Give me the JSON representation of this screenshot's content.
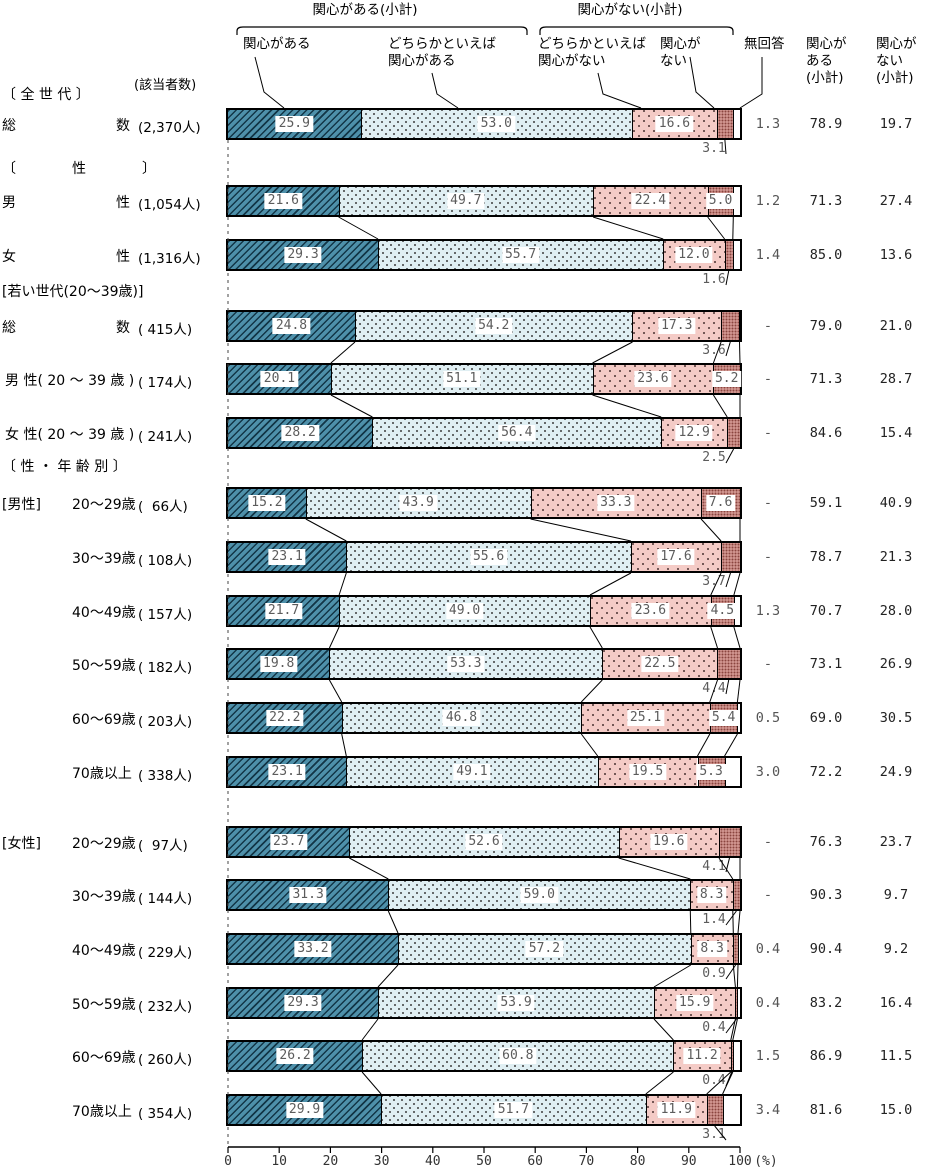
{
  "header": {
    "yes_subtotal": "関心がある(小計)",
    "no_subtotal": "関心がない(小計)",
    "yes": "関心がある",
    "rather_yes": "どちらかといえば\n関心がある",
    "rather_no": "どちらかといえば\n関心がない",
    "no": "関心が\nない",
    "no_answer": "無回答",
    "col_yes": "関心が\nある\n(小計)",
    "col_no": "関心が\nない\n(小計)",
    "respondents_note": "(該当者数)"
  },
  "axis": {
    "ticks": [
      "0",
      "10",
      "20",
      "30",
      "40",
      "50",
      "60",
      "70",
      "80",
      "90",
      "100"
    ],
    "unit": "(%)"
  },
  "colors": {
    "yes": "#4e90aa",
    "rather_yes": "#e0eff3",
    "rather_no": "#f4cbc6",
    "no": "#dda39d",
    "no_answer": "#ffffff"
  },
  "sections": [
    {
      "text": "〔 全 世 代 〕",
      "before": 0
    },
    {
      "text": "〔　　　　性　　　　〕",
      "before": 1
    },
    {
      "text": "[若い世代(20～39歳)]",
      "before": 3
    },
    {
      "text": "〔 性 ・ 年 齢 別 〕",
      "before": 6
    }
  ],
  "rows": [
    {
      "prefix": "",
      "name": "総数",
      "spread": true,
      "name_col": "outer",
      "count": "(2,370人)",
      "values": [
        25.9,
        53.0,
        16.6,
        3.1
      ],
      "no_pos": "below",
      "no_answer": "1.3",
      "yes_subtotal": "78.9",
      "no_subtotal": "19.7"
    },
    {
      "prefix": "",
      "name": "男性",
      "spread": true,
      "name_col": "outer",
      "count": "(1,054人)",
      "values": [
        21.6,
        49.7,
        22.4,
        5.0
      ],
      "no_pos": "in",
      "no_answer": "1.2",
      "yes_subtotal": "71.3",
      "no_subtotal": "27.4"
    },
    {
      "prefix": "",
      "name": "女性",
      "spread": true,
      "name_col": "outer",
      "count": "(1,316人)",
      "values": [
        29.3,
        55.7,
        12.0,
        1.6
      ],
      "no_pos": "below",
      "no_answer": "1.4",
      "yes_subtotal": "85.0",
      "no_subtotal": "13.6"
    },
    {
      "prefix": "",
      "name": "総数",
      "spread": true,
      "name_col": "outer",
      "count": "( 415人)",
      "values": [
        24.8,
        54.2,
        17.3,
        3.6
      ],
      "no_pos": "below",
      "no_answer": "-",
      "yes_subtotal": "79.0",
      "no_subtotal": "21.0"
    },
    {
      "prefix": "",
      "name": "男 性( 20 ～ 39 歳 )",
      "spread": false,
      "name_col": "outer",
      "count": "( 174人)",
      "values": [
        20.1,
        51.1,
        23.6,
        5.2
      ],
      "no_pos": "in",
      "no_answer": "-",
      "yes_subtotal": "71.3",
      "no_subtotal": "28.7"
    },
    {
      "prefix": "",
      "name": "女 性( 20 ～ 39 歳 )",
      "spread": false,
      "name_col": "outer",
      "count": "( 241人)",
      "values": [
        28.2,
        56.4,
        12.9,
        2.5
      ],
      "no_pos": "below",
      "no_answer": "-",
      "yes_subtotal": "84.6",
      "no_subtotal": "15.4"
    },
    {
      "prefix": "[男性]",
      "name": "20～29歳",
      "spread": false,
      "name_col": "inner",
      "count": "(  66人)",
      "values": [
        15.2,
        43.9,
        33.3,
        7.6
      ],
      "no_pos": "in",
      "no_answer": "-",
      "yes_subtotal": "59.1",
      "no_subtotal": "40.9"
    },
    {
      "prefix": "",
      "name": "30～39歳",
      "spread": false,
      "name_col": "inner",
      "count": "( 108人)",
      "values": [
        23.1,
        55.6,
        17.6,
        3.7
      ],
      "no_pos": "below",
      "no_answer": "-",
      "yes_subtotal": "78.7",
      "no_subtotal": "21.3"
    },
    {
      "prefix": "",
      "name": "40～49歳",
      "spread": false,
      "name_col": "inner",
      "count": "( 157人)",
      "values": [
        21.7,
        49.0,
        23.6,
        4.5
      ],
      "no_pos": "in",
      "no_answer": "1.3",
      "yes_subtotal": "70.7",
      "no_subtotal": "28.0"
    },
    {
      "prefix": "",
      "name": "50～59歳",
      "spread": false,
      "name_col": "inner",
      "count": "( 182人)",
      "values": [
        19.8,
        53.3,
        22.5,
        4.4
      ],
      "no_pos": "below",
      "no_answer": "-",
      "yes_subtotal": "73.1",
      "no_subtotal": "26.9"
    },
    {
      "prefix": "",
      "name": "60～69歳",
      "spread": false,
      "name_col": "inner",
      "count": "( 203人)",
      "values": [
        22.2,
        46.8,
        25.1,
        5.4
      ],
      "no_pos": "in",
      "no_answer": "0.5",
      "yes_subtotal": "69.0",
      "no_subtotal": "30.5"
    },
    {
      "prefix": "",
      "name": "70歳以上",
      "spread": false,
      "name_col": "inner",
      "count": "( 338人)",
      "values": [
        23.1,
        49.1,
        19.5,
        5.3
      ],
      "no_pos": "in",
      "no_answer": "3.0",
      "yes_subtotal": "72.2",
      "no_subtotal": "24.9"
    },
    {
      "prefix": "[女性]",
      "name": "20～29歳",
      "spread": false,
      "name_col": "inner",
      "count": "(  97人)",
      "values": [
        23.7,
        52.6,
        19.6,
        4.1
      ],
      "no_pos": "below",
      "no_answer": "-",
      "yes_subtotal": "76.3",
      "no_subtotal": "23.7"
    },
    {
      "prefix": "",
      "name": "30～39歳",
      "spread": false,
      "name_col": "inner",
      "count": "( 144人)",
      "values": [
        31.3,
        59.0,
        8.3,
        1.4
      ],
      "no_pos": "below",
      "no_answer": "-",
      "yes_subtotal": "90.3",
      "no_subtotal": "9.7"
    },
    {
      "prefix": "",
      "name": "40～49歳",
      "spread": false,
      "name_col": "inner",
      "count": "( 229人)",
      "values": [
        33.2,
        57.2,
        8.3,
        0.9
      ],
      "no_pos": "below",
      "no_answer": "0.4",
      "yes_subtotal": "90.4",
      "no_subtotal": "9.2"
    },
    {
      "prefix": "",
      "name": "50～59歳",
      "spread": false,
      "name_col": "inner",
      "count": "( 232人)",
      "values": [
        29.3,
        53.9,
        15.9,
        0.4
      ],
      "no_pos": "below",
      "no_answer": "0.4",
      "yes_subtotal": "83.2",
      "no_subtotal": "16.4"
    },
    {
      "prefix": "",
      "name": "60～69歳",
      "spread": false,
      "name_col": "inner",
      "count": "( 260人)",
      "values": [
        26.2,
        60.8,
        11.2,
        0.4
      ],
      "no_pos": "below",
      "no_answer": "1.5",
      "yes_subtotal": "86.9",
      "no_subtotal": "11.5"
    },
    {
      "prefix": "",
      "name": "70歳以上",
      "spread": false,
      "name_col": "inner",
      "count": "( 354人)",
      "values": [
        29.9,
        51.7,
        11.9,
        3.1
      ],
      "no_pos": "below",
      "no_answer": "3.4",
      "yes_subtotal": "81.6",
      "no_subtotal": "15.0"
    }
  ],
  "chart_data": {
    "type": "bar",
    "stacked": true,
    "horizontal": true,
    "xlim": [
      0,
      100
    ],
    "x_ticks": [
      0,
      10,
      20,
      30,
      40,
      50,
      60,
      70,
      80,
      90,
      100
    ],
    "unit": "%",
    "legend": [
      "関心がある",
      "どちらかといえば関心がある",
      "どちらかといえば関心がない",
      "関心がない",
      "無回答"
    ],
    "legend_groups": [
      {
        "label": "関心がある(小計)",
        "members": [
          "関心がある",
          "どちらかといえば関心がある"
        ]
      },
      {
        "label": "関心がない(小計)",
        "members": [
          "どちらかといえば関心がない",
          "関心がない"
        ]
      }
    ],
    "categories": [
      "全世代 総数",
      "男性",
      "女性",
      "若い世代(20～39歳) 総数",
      "男性(20～39歳)",
      "女性(20～39歳)",
      "男性 20～29歳",
      "男性 30～39歳",
      "男性 40～49歳",
      "男性 50～59歳",
      "男性 60～69歳",
      "男性 70歳以上",
      "女性 20～29歳",
      "女性 30～39歳",
      "女性 40～49歳",
      "女性 50～59歳",
      "女性 60～69歳",
      "女性 70歳以上"
    ],
    "n": [
      2370,
      1054,
      1316,
      415,
      174,
      241,
      66,
      108,
      157,
      182,
      203,
      338,
      97,
      144,
      229,
      232,
      260,
      354
    ],
    "series": [
      {
        "name": "関心がある",
        "values": [
          25.9,
          21.6,
          29.3,
          24.8,
          20.1,
          28.2,
          15.2,
          23.1,
          21.7,
          19.8,
          22.2,
          23.1,
          23.7,
          31.3,
          33.2,
          29.3,
          26.2,
          29.9
        ]
      },
      {
        "name": "どちらかといえば関心がある",
        "values": [
          53.0,
          49.7,
          55.7,
          54.2,
          51.1,
          56.4,
          43.9,
          55.6,
          49.0,
          53.3,
          46.8,
          49.1,
          52.6,
          59.0,
          57.2,
          53.9,
          60.8,
          51.7
        ]
      },
      {
        "name": "どちらかといえば関心がない",
        "values": [
          16.6,
          22.4,
          12.0,
          17.3,
          23.6,
          12.9,
          33.3,
          17.6,
          23.6,
          22.5,
          25.1,
          19.5,
          19.6,
          8.3,
          8.3,
          15.9,
          11.2,
          11.9
        ]
      },
      {
        "name": "関心がない",
        "values": [
          3.1,
          5.0,
          1.6,
          3.6,
          5.2,
          2.5,
          7.6,
          3.7,
          4.5,
          4.4,
          5.4,
          5.3,
          4.1,
          1.4,
          0.9,
          0.4,
          0.4,
          3.1
        ]
      },
      {
        "name": "無回答",
        "values": [
          1.3,
          1.2,
          1.4,
          null,
          null,
          null,
          null,
          null,
          1.3,
          null,
          0.5,
          3.0,
          null,
          null,
          0.4,
          0.4,
          1.5,
          3.4
        ]
      }
    ],
    "subtotal_yes": [
      78.9,
      71.3,
      85.0,
      79.0,
      71.3,
      84.6,
      59.1,
      78.7,
      70.7,
      73.1,
      69.0,
      72.2,
      76.3,
      90.3,
      90.4,
      83.2,
      86.9,
      81.6
    ],
    "subtotal_no": [
      19.7,
      27.4,
      13.6,
      21.0,
      28.7,
      15.4,
      40.9,
      21.3,
      28.0,
      26.9,
      30.5,
      24.9,
      23.7,
      9.7,
      9.2,
      16.4,
      11.5,
      15.0
    ]
  }
}
